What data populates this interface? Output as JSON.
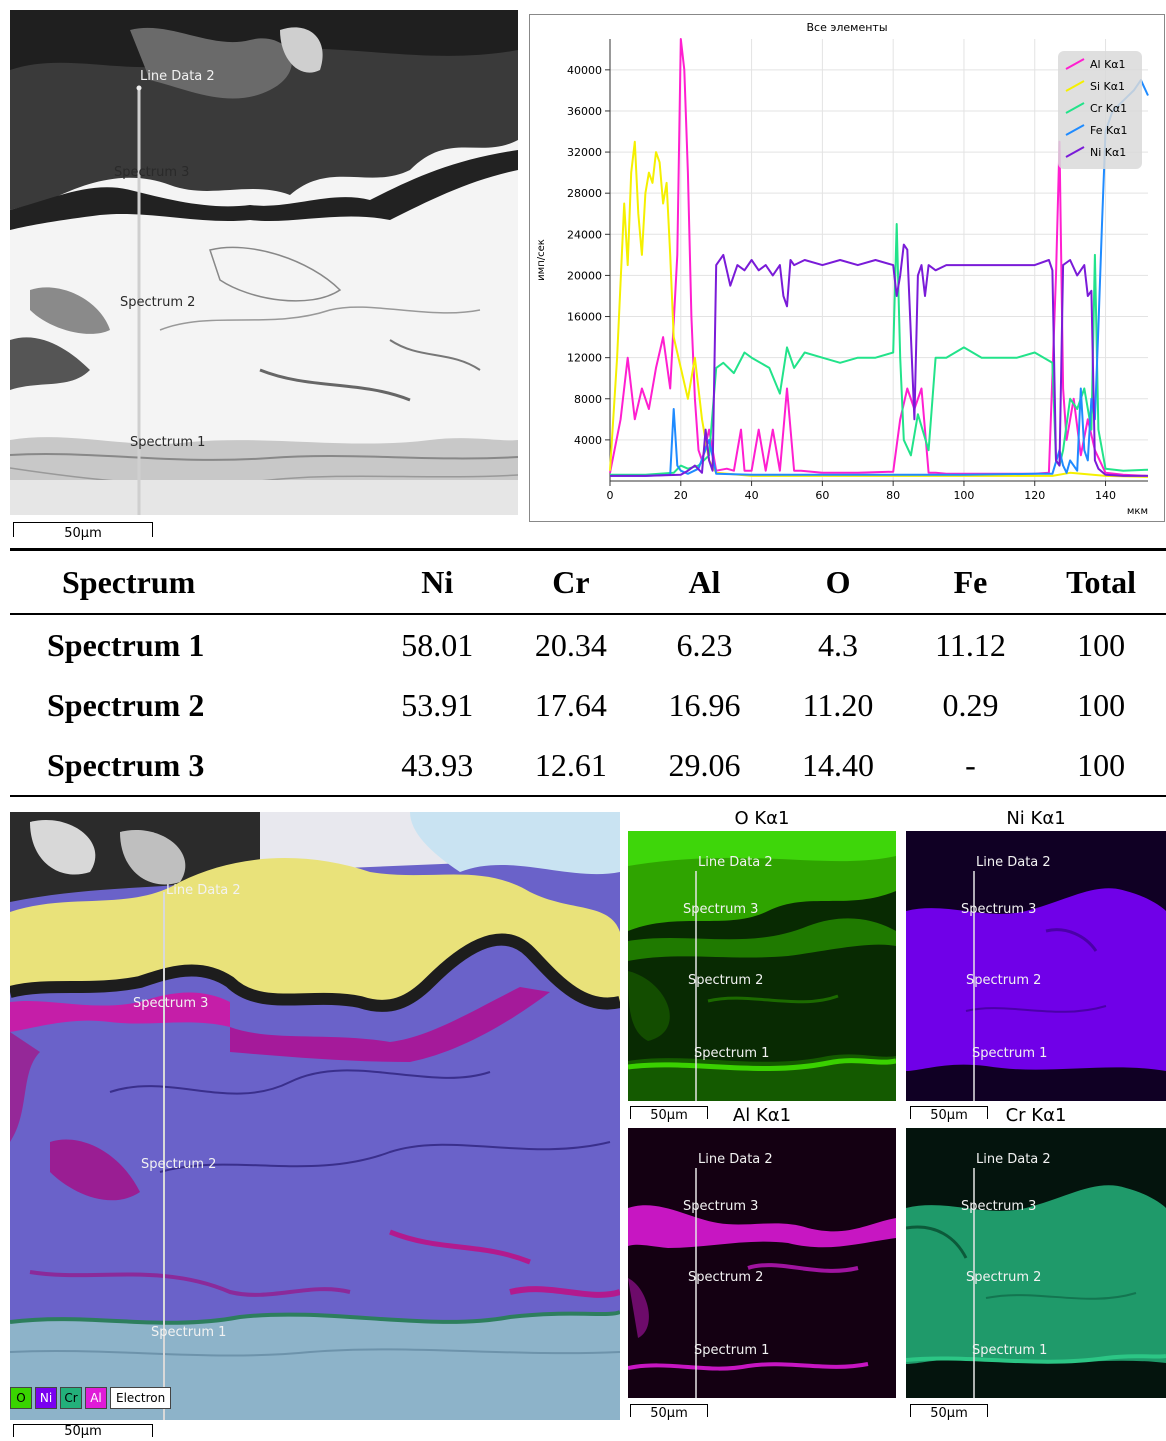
{
  "colors": {
    "al": "#ff1fd0",
    "si": "#f5f000",
    "cr": "#22e38a",
    "fe": "#1f8bff",
    "ni": "#7a1bd8",
    "o_map": "#39d400",
    "ni_map": "#7a00f0",
    "al_map": "#e01bd8",
    "cr_map": "#23b07a"
  },
  "sem": {
    "line_label": "Line Data 2",
    "spectrum_labels": [
      "Spectrum 3",
      "Spectrum 2",
      "Spectrum 1"
    ],
    "scale_label": "50µm"
  },
  "chart_data": {
    "type": "line",
    "title": "Все элементы",
    "xlabel": "мкм",
    "ylabel": "имп/сек",
    "xlim": [
      0,
      152
    ],
    "ylim": [
      0,
      43000
    ],
    "xticks": [
      "0",
      "20",
      "40",
      "60",
      "80",
      "100",
      "120",
      "140"
    ],
    "yticks": [
      "4000",
      "8000",
      "12000",
      "16000",
      "20000",
      "24000",
      "28000",
      "32000",
      "36000",
      "40000"
    ],
    "legend_position": "top-right",
    "grid": true,
    "series": [
      {
        "name": "Al Kα1",
        "color": "#ff1fd0",
        "x": [
          0,
          3,
          5,
          7,
          9,
          11,
          13,
          15,
          17,
          19,
          20,
          21,
          22,
          23,
          24,
          25,
          26,
          28,
          30,
          33,
          35,
          37,
          38,
          40,
          42,
          44,
          46,
          48,
          50,
          52,
          54,
          60,
          70,
          80,
          82,
          84,
          86,
          88,
          90,
          92,
          95,
          100,
          110,
          120,
          124,
          126,
          127,
          128,
          129,
          131,
          133,
          135,
          137,
          140,
          145,
          152
        ],
        "y": [
          800,
          6000,
          12000,
          6000,
          9000,
          7000,
          11000,
          14000,
          9000,
          22000,
          43000,
          40000,
          30000,
          16000,
          8000,
          3000,
          2000,
          5000,
          1000,
          1200,
          1000,
          5000,
          1000,
          1000,
          5000,
          1000,
          5000,
          1000,
          9000,
          1000,
          1000,
          800,
          800,
          900,
          6000,
          9000,
          7000,
          9000,
          800,
          800,
          700,
          700,
          700,
          700,
          800,
          20000,
          33000,
          9000,
          4000,
          8000,
          2500,
          6000,
          3000,
          800,
          600,
          500
        ]
      },
      {
        "name": "Si Kα1",
        "color": "#f5f000",
        "x": [
          0,
          2,
          4,
          5,
          6,
          7,
          8,
          9,
          10,
          11,
          12,
          13,
          14,
          15,
          16,
          17,
          18,
          20,
          22,
          24,
          26,
          28,
          30,
          40,
          60,
          80,
          100,
          125,
          130,
          140,
          152
        ],
        "y": [
          1000,
          12000,
          27000,
          21000,
          30000,
          33000,
          26000,
          22000,
          28000,
          30000,
          29000,
          32000,
          31000,
          27000,
          29000,
          22000,
          14000,
          11000,
          8000,
          12000,
          6000,
          2000,
          800,
          500,
          500,
          500,
          500,
          500,
          800,
          500,
          400
        ]
      },
      {
        "name": "Cr Kα1",
        "color": "#22e38a",
        "x": [
          0,
          10,
          18,
          20,
          22,
          25,
          28,
          30,
          32,
          35,
          38,
          40,
          45,
          48,
          50,
          52,
          55,
          60,
          65,
          70,
          75,
          80,
          81,
          82,
          83,
          85,
          87,
          90,
          92,
          95,
          100,
          105,
          110,
          115,
          120,
          125,
          126,
          127,
          128,
          130,
          132,
          134,
          136,
          137,
          138,
          140,
          145,
          152
        ],
        "y": [
          600,
          600,
          800,
          1500,
          1200,
          1500,
          2500,
          11000,
          11500,
          10500,
          12500,
          12000,
          11000,
          8500,
          13000,
          11000,
          12500,
          12000,
          11500,
          12000,
          12000,
          12500,
          25000,
          12000,
          4000,
          2500,
          6500,
          3000,
          12000,
          12000,
          13000,
          12000,
          12000,
          12000,
          12500,
          11500,
          2000,
          1500,
          3000,
          8000,
          7000,
          9000,
          5000,
          22000,
          5000,
          1200,
          1000,
          1100
        ]
      },
      {
        "name": "Fe Kα1",
        "color": "#1f8bff",
        "x": [
          0,
          10,
          17,
          18,
          19,
          20,
          22,
          25,
          28,
          30,
          40,
          60,
          80,
          100,
          120,
          125,
          127,
          128,
          129,
          130,
          132,
          133,
          134,
          135,
          136,
          137,
          138,
          139,
          140,
          142,
          145,
          148,
          150,
          152
        ],
        "y": [
          500,
          500,
          600,
          7000,
          1500,
          1000,
          700,
          1200,
          4000,
          700,
          600,
          600,
          600,
          600,
          700,
          700,
          3000,
          1500,
          800,
          2000,
          1000,
          9000,
          3000,
          2000,
          8000,
          6000,
          15000,
          25000,
          34000,
          36000,
          37000,
          38000,
          39000,
          37500
        ]
      },
      {
        "name": "Ni Kα1",
        "color": "#7a1bd8",
        "x": [
          0,
          10,
          20,
          22,
          24,
          26,
          27,
          28,
          29,
          30,
          32,
          34,
          36,
          38,
          40,
          42,
          44,
          46,
          48,
          49,
          50,
          51,
          52,
          55,
          60,
          65,
          70,
          75,
          80,
          81,
          82,
          83,
          84,
          86,
          87,
          88,
          89,
          90,
          92,
          95,
          100,
          105,
          110,
          115,
          120,
          124,
          125,
          126,
          127,
          128,
          130,
          132,
          134,
          135,
          136,
          137,
          138,
          140,
          145,
          152
        ],
        "y": [
          500,
          500,
          600,
          1000,
          1500,
          800,
          5000,
          2000,
          1000,
          21000,
          22000,
          19000,
          21000,
          20500,
          21500,
          20500,
          21000,
          20000,
          21000,
          18000,
          17000,
          21500,
          21000,
          21500,
          21000,
          21500,
          21000,
          21500,
          21000,
          18000,
          20000,
          23000,
          22500,
          6000,
          20000,
          21000,
          18000,
          21000,
          20500,
          21000,
          21000,
          21000,
          21000,
          21000,
          21000,
          21500,
          20500,
          2000,
          1500,
          21000,
          21500,
          20000,
          21000,
          18000,
          18500,
          2000,
          1200,
          600,
          500,
          500
        ]
      }
    ]
  },
  "table": {
    "headers": [
      "Spectrum",
      "Ni",
      "Cr",
      "Al",
      "O",
      "Fe",
      "Total"
    ],
    "rows": [
      [
        "Spectrum 1",
        "58.01",
        "20.34",
        "6.23",
        "4.3",
        "11.12",
        "100"
      ],
      [
        "Spectrum 2",
        "53.91",
        "17.64",
        "16.96",
        "11.20",
        "0.29",
        "100"
      ],
      [
        "Spectrum 3",
        "43.93",
        "12.61",
        "29.06",
        "14.40",
        "-",
        "100"
      ]
    ]
  },
  "maps": {
    "o_title": "O Kα1",
    "ni_title": "Ni Kα1",
    "al_title": "Al Kα1",
    "cr_title": "Cr Kα1"
  },
  "composite_legend": [
    "O",
    "Ni",
    "Cr",
    "Al",
    "Electron"
  ]
}
